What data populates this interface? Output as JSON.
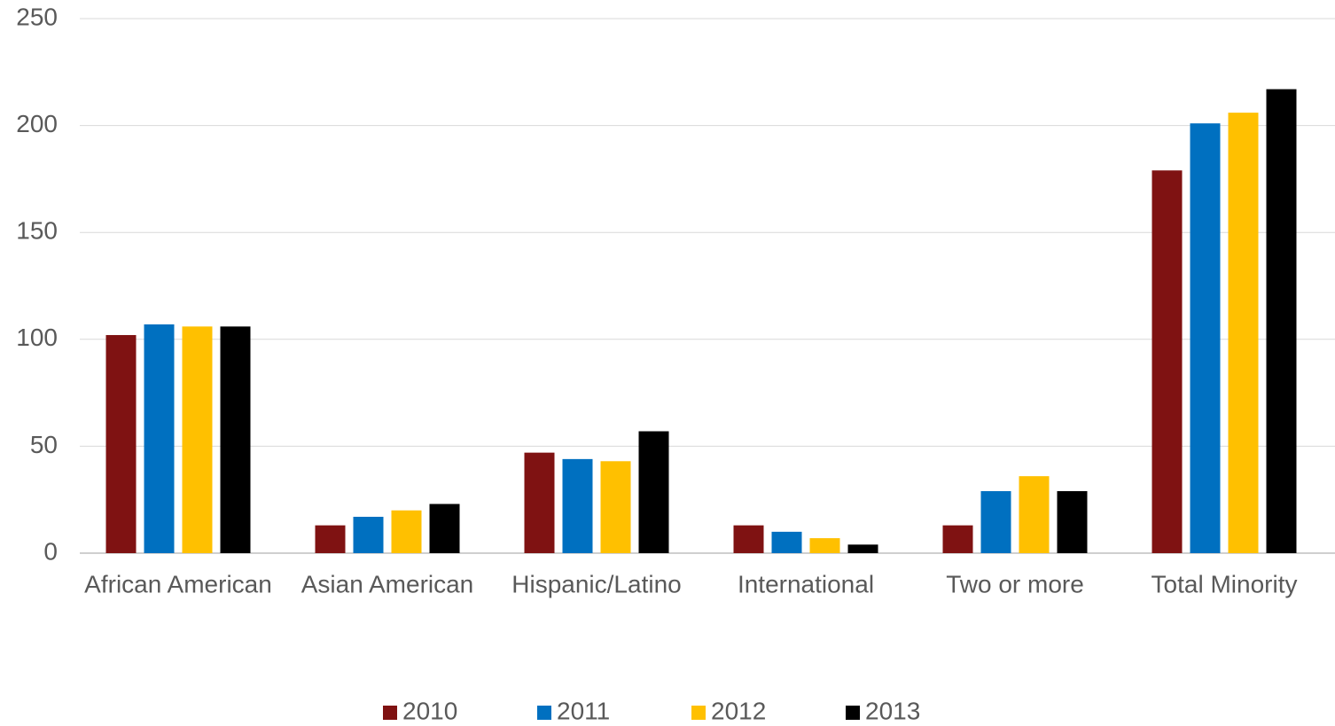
{
  "chart_data": {
    "type": "bar",
    "categories": [
      "African American",
      "Asian American",
      "Hispanic/Latino",
      "International",
      "Two or more",
      "Total Minority"
    ],
    "series": [
      {
        "name": "2010",
        "color": "#7f1212",
        "values": [
          102,
          13,
          47,
          13,
          13,
          179
        ]
      },
      {
        "name": "2011",
        "color": "#0070c0",
        "values": [
          107,
          17,
          44,
          10,
          29,
          201
        ]
      },
      {
        "name": "2012",
        "color": "#ffc000",
        "values": [
          106,
          20,
          43,
          7,
          36,
          206
        ]
      },
      {
        "name": "2013",
        "color": "#000000",
        "values": [
          106,
          23,
          57,
          4,
          29,
          217
        ]
      }
    ],
    "ylim": [
      0,
      250
    ],
    "yticks": [
      0,
      50,
      100,
      150,
      200,
      250
    ],
    "grid": true,
    "legend": "bottom"
  }
}
